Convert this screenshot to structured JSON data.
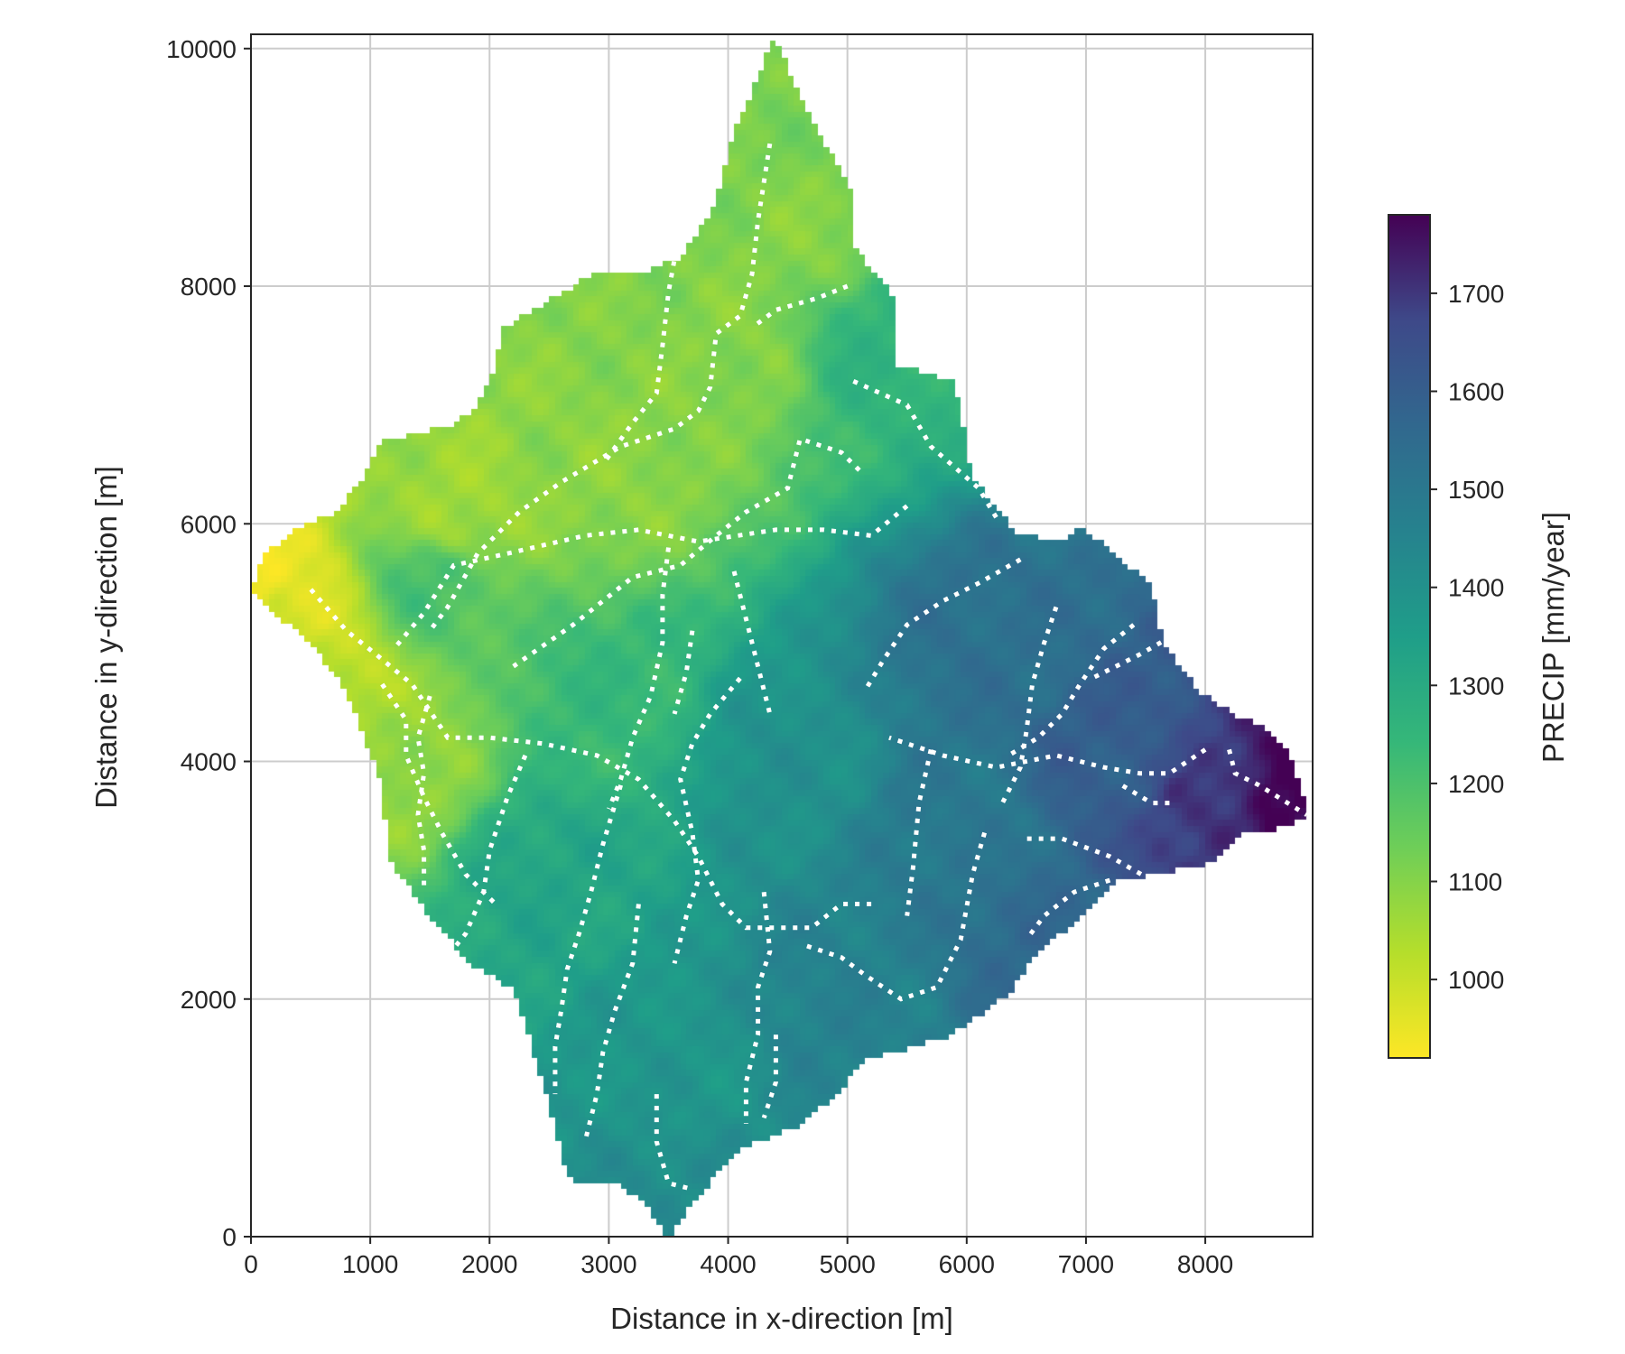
{
  "chart_data": {
    "type": "heatmap",
    "title": "",
    "xlabel": "Distance in x-direction [m]",
    "ylabel": "Distance in y-direction [m]",
    "xlim": [
      0,
      8900
    ],
    "ylim": [
      0,
      10120
    ],
    "x_ticks": [
      "0",
      "1000",
      "2000",
      "3000",
      "4000",
      "5000",
      "6000",
      "7000",
      "8000"
    ],
    "y_ticks": [
      "0",
      "2000",
      "4000",
      "6000",
      "8000",
      "10000"
    ],
    "grid": true,
    "colormap": "viridis_r",
    "colorbar": {
      "label": "PRECIP [mm/year]",
      "range": [
        920,
        1780
      ],
      "ticks": [
        "1000",
        "1100",
        "1200",
        "1300",
        "1400",
        "1500",
        "1600",
        "1700"
      ]
    },
    "catchment_outline": [
      [
        4390,
        10100
      ],
      [
        4650,
        9500
      ],
      [
        5050,
        8800
      ],
      [
        5050,
        8350
      ],
      [
        5400,
        7900
      ],
      [
        5400,
        7350
      ],
      [
        5900,
        7200
      ],
      [
        6050,
        6400
      ],
      [
        6400,
        5950
      ],
      [
        6800,
        5850
      ],
      [
        6950,
        6000
      ],
      [
        7300,
        5700
      ],
      [
        7550,
        5500
      ],
      [
        7650,
        5000
      ],
      [
        7950,
        4600
      ],
      [
        8250,
        4400
      ],
      [
        8500,
        4300
      ],
      [
        8700,
        4100
      ],
      [
        8800,
        3800
      ],
      [
        8880,
        3550
      ],
      [
        8500,
        3400
      ],
      [
        8300,
        3400
      ],
      [
        8050,
        3150
      ],
      [
        7250,
        3000
      ],
      [
        6950,
        2700
      ],
      [
        6600,
        2400
      ],
      [
        6350,
        2050
      ],
      [
        5850,
        1700
      ],
      [
        5150,
        1500
      ],
      [
        4900,
        1200
      ],
      [
        4600,
        950
      ],
      [
        4100,
        750
      ],
      [
        3700,
        300
      ],
      [
        3500,
        0
      ],
      [
        3300,
        300
      ],
      [
        3100,
        450
      ],
      [
        2650,
        500
      ],
      [
        2450,
        1300
      ],
      [
        2200,
        2100
      ],
      [
        1850,
        2300
      ],
      [
        1500,
        2700
      ],
      [
        1150,
        3200
      ],
      [
        1100,
        3800
      ],
      [
        800,
        4600
      ],
      [
        500,
        5000
      ],
      [
        150,
        5300
      ],
      [
        0,
        5450
      ],
      [
        100,
        5750
      ],
      [
        450,
        6000
      ],
      [
        700,
        6100
      ],
      [
        900,
        6350
      ],
      [
        1100,
        6700
      ],
      [
        1700,
        6850
      ],
      [
        1900,
        7000
      ],
      [
        2050,
        7300
      ],
      [
        2100,
        7650
      ],
      [
        2450,
        7850
      ],
      [
        2850,
        8100
      ],
      [
        3250,
        8100
      ],
      [
        3600,
        8250
      ],
      [
        3900,
        8700
      ],
      [
        4050,
        9300
      ],
      [
        4390,
        10100
      ]
    ],
    "precip_control_points": [
      {
        "x": 0,
        "y": 5450,
        "v": 930
      },
      {
        "x": 300,
        "y": 5300,
        "v": 960
      },
      {
        "x": 700,
        "y": 4800,
        "v": 1010
      },
      {
        "x": 1200,
        "y": 4000,
        "v": 1080
      },
      {
        "x": 1500,
        "y": 5500,
        "v": 1200
      },
      {
        "x": 1700,
        "y": 6100,
        "v": 1060
      },
      {
        "x": 3000,
        "y": 6500,
        "v": 1090
      },
      {
        "x": 4000,
        "y": 7500,
        "v": 1100
      },
      {
        "x": 4400,
        "y": 9500,
        "v": 1120
      },
      {
        "x": 4700,
        "y": 8500,
        "v": 1100
      },
      {
        "x": 5300,
        "y": 7500,
        "v": 1260
      },
      {
        "x": 3000,
        "y": 4500,
        "v": 1240
      },
      {
        "x": 2500,
        "y": 3000,
        "v": 1320
      },
      {
        "x": 3500,
        "y": 1500,
        "v": 1380
      },
      {
        "x": 3600,
        "y": 200,
        "v": 1420
      },
      {
        "x": 4500,
        "y": 4000,
        "v": 1400
      },
      {
        "x": 5000,
        "y": 2000,
        "v": 1460
      },
      {
        "x": 6000,
        "y": 3500,
        "v": 1500
      },
      {
        "x": 6200,
        "y": 5000,
        "v": 1530
      },
      {
        "x": 6700,
        "y": 2500,
        "v": 1560
      },
      {
        "x": 7200,
        "y": 4000,
        "v": 1600
      },
      {
        "x": 8000,
        "y": 3500,
        "v": 1700
      },
      {
        "x": 8800,
        "y": 3600,
        "v": 1780
      }
    ],
    "stream_polylines": [
      [
        [
          4350,
          9200
        ],
        [
          4250,
          8550
        ],
        [
          4200,
          8100
        ],
        [
          4100,
          7750
        ],
        [
          3900,
          7600
        ],
        [
          3850,
          7150
        ],
        [
          3750,
          6950
        ],
        [
          3550,
          6800
        ],
        [
          3100,
          6650
        ],
        [
          2600,
          6350
        ],
        [
          2250,
          6100
        ],
        [
          1900,
          5750
        ],
        [
          1650,
          5300
        ],
        [
          1500,
          5100
        ]
      ],
      [
        [
          3600,
          8500
        ],
        [
          3500,
          7950
        ],
        [
          3450,
          7500
        ],
        [
          3400,
          7100
        ],
        [
          3200,
          6850
        ],
        [
          2950,
          6500
        ]
      ],
      [
        [
          5000,
          8000
        ],
        [
          4750,
          7900
        ],
        [
          4400,
          7800
        ],
        [
          4200,
          7650
        ]
      ],
      [
        [
          5050,
          7200
        ],
        [
          5500,
          7000
        ],
        [
          5700,
          6650
        ],
        [
          6100,
          6300
        ],
        [
          6250,
          6050
        ]
      ],
      [
        [
          4600,
          6700
        ],
        [
          4500,
          6300
        ],
        [
          4150,
          6100
        ],
        [
          3900,
          5900
        ],
        [
          3600,
          5650
        ],
        [
          3200,
          5550
        ],
        [
          2700,
          5150
        ],
        [
          2200,
          4800
        ]
      ],
      [
        [
          5500,
          6150
        ],
        [
          5200,
          5900
        ],
        [
          4800,
          5950
        ],
        [
          4400,
          5950
        ],
        [
          3750,
          5850
        ],
        [
          3250,
          5950
        ],
        [
          2800,
          5900
        ],
        [
          2150,
          5750
        ],
        [
          1700,
          5650
        ],
        [
          1450,
          5250
        ],
        [
          1200,
          4950
        ]
      ],
      [
        [
          5100,
          6450
        ],
        [
          4950,
          6600
        ],
        [
          4650,
          6700
        ]
      ],
      [
        [
          6450,
          5700
        ],
        [
          6100,
          5500
        ],
        [
          5800,
          5350
        ],
        [
          5500,
          5150
        ],
        [
          5300,
          4850
        ],
        [
          5150,
          4600
        ]
      ],
      [
        [
          6750,
          5300
        ],
        [
          6650,
          5000
        ],
        [
          6550,
          4650
        ],
        [
          6500,
          4250
        ],
        [
          6450,
          3950
        ],
        [
          6300,
          3650
        ]
      ],
      [
        [
          7400,
          5150
        ],
        [
          7150,
          4950
        ],
        [
          6950,
          4650
        ],
        [
          6800,
          4400
        ],
        [
          6600,
          4200
        ],
        [
          6350,
          4050
        ]
      ],
      [
        [
          7800,
          5100
        ],
        [
          7450,
          4900
        ],
        [
          7050,
          4700
        ]
      ],
      [
        [
          8000,
          4100
        ],
        [
          7700,
          3900
        ],
        [
          7450,
          3900
        ],
        [
          7150,
          3950
        ],
        [
          6750,
          4050
        ],
        [
          6250,
          3950
        ],
        [
          5800,
          4050
        ],
        [
          5350,
          4200
        ]
      ],
      [
        [
          8200,
          4100
        ],
        [
          8250,
          3900
        ],
        [
          8450,
          3800
        ],
        [
          8850,
          3550
        ]
      ],
      [
        [
          7700,
          3650
        ],
        [
          7550,
          3650
        ],
        [
          7300,
          3800
        ]
      ],
      [
        [
          7800,
          2850
        ],
        [
          7550,
          3000
        ],
        [
          7200,
          3200
        ],
        [
          6800,
          3350
        ],
        [
          6450,
          3350
        ]
      ],
      [
        [
          7200,
          3000
        ],
        [
          6900,
          2900
        ],
        [
          6650,
          2700
        ],
        [
          6500,
          2500
        ]
      ],
      [
        [
          6150,
          3400
        ],
        [
          6050,
          3050
        ],
        [
          5950,
          2500
        ],
        [
          5750,
          2100
        ],
        [
          5450,
          2000
        ],
        [
          5150,
          2200
        ],
        [
          4950,
          2350
        ],
        [
          4650,
          2450
        ]
      ],
      [
        [
          5700,
          4100
        ],
        [
          5600,
          3650
        ],
        [
          5550,
          3100
        ],
        [
          5500,
          2700
        ]
      ],
      [
        [
          5200,
          2800
        ],
        [
          4950,
          2800
        ],
        [
          4700,
          2600
        ],
        [
          4450,
          2600
        ],
        [
          4150,
          2600
        ],
        [
          3950,
          2800
        ],
        [
          3750,
          3200
        ],
        [
          3550,
          3500
        ],
        [
          3250,
          3850
        ],
        [
          2900,
          4050
        ],
        [
          2450,
          4150
        ],
        [
          2000,
          4200
        ],
        [
          1650,
          4200
        ],
        [
          1350,
          4650
        ],
        [
          1050,
          4900
        ],
        [
          800,
          5100
        ],
        [
          500,
          5450
        ]
      ],
      [
        [
          3500,
          5800
        ],
        [
          3450,
          5400
        ],
        [
          3450,
          5000
        ],
        [
          3350,
          4550
        ],
        [
          3200,
          4200
        ],
        [
          3100,
          3850
        ],
        [
          3000,
          3600
        ]
      ],
      [
        [
          4050,
          5600
        ],
        [
          4150,
          5200
        ],
        [
          4250,
          4800
        ],
        [
          4350,
          4400
        ]
      ],
      [
        [
          3700,
          5100
        ],
        [
          3650,
          4750
        ],
        [
          3550,
          4400
        ]
      ],
      [
        [
          4100,
          4700
        ],
        [
          3850,
          4400
        ],
        [
          3700,
          4150
        ],
        [
          3600,
          3850
        ],
        [
          3700,
          3400
        ],
        [
          3750,
          3000
        ],
        [
          3650,
          2700
        ],
        [
          3550,
          2300
        ]
      ],
      [
        [
          4300,
          2900
        ],
        [
          4350,
          2400
        ],
        [
          4250,
          2100
        ],
        [
          4250,
          1700
        ],
        [
          4150,
          1300
        ],
        [
          4150,
          950
        ]
      ],
      [
        [
          3100,
          3800
        ],
        [
          2950,
          3300
        ],
        [
          2850,
          2900
        ],
        [
          2750,
          2550
        ],
        [
          2650,
          2250
        ],
        [
          2600,
          1900
        ],
        [
          2550,
          1600
        ],
        [
          2550,
          1200
        ]
      ],
      [
        [
          3250,
          2800
        ],
        [
          3200,
          2300
        ],
        [
          3050,
          1900
        ],
        [
          2950,
          1550
        ],
        [
          2900,
          1200
        ],
        [
          2800,
          800
        ]
      ],
      [
        [
          2300,
          4050
        ],
        [
          2150,
          3700
        ],
        [
          2000,
          3250
        ],
        [
          1950,
          2900
        ],
        [
          1800,
          2550
        ],
        [
          1600,
          2300
        ]
      ],
      [
        [
          1500,
          4550
        ],
        [
          1400,
          4200
        ],
        [
          1450,
          3900
        ],
        [
          1400,
          3550
        ],
        [
          1450,
          3250
        ],
        [
          1450,
          2900
        ]
      ],
      [
        [
          1100,
          4650
        ],
        [
          1300,
          4350
        ],
        [
          1300,
          4050
        ],
        [
          1450,
          3700
        ],
        [
          1600,
          3400
        ],
        [
          1800,
          3050
        ],
        [
          2050,
          2800
        ]
      ],
      [
        [
          3400,
          1200
        ],
        [
          3400,
          800
        ],
        [
          3500,
          450
        ],
        [
          3700,
          400
        ]
      ],
      [
        [
          4400,
          1700
        ],
        [
          4400,
          1300
        ],
        [
          4300,
          1000
        ]
      ]
    ]
  }
}
